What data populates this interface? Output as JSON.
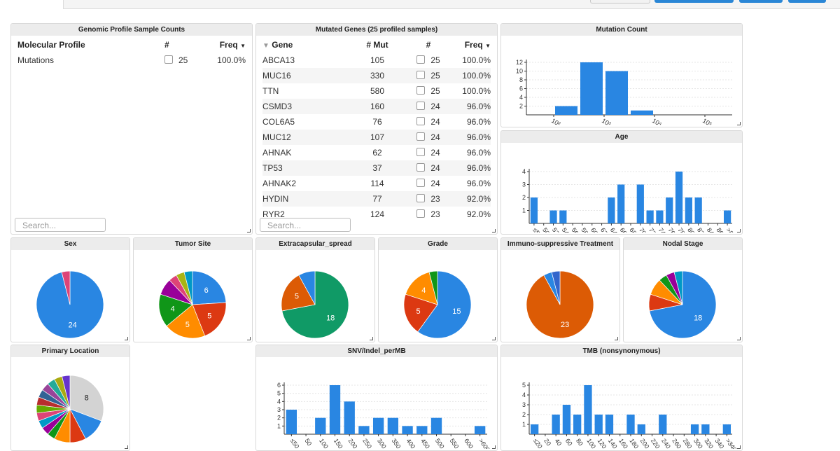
{
  "colors": {
    "blue": "#2986e2",
    "orange": "#dc5b05",
    "green": "#109618",
    "teal": "#109a66",
    "red": "#dc3912",
    "amber": "#ff8c00",
    "purple": "#990099",
    "pink": "#dd4477",
    "olive": "#a8b414",
    "gray": "#d3d3d3"
  },
  "genomic_profile": {
    "title": "Genomic Profile Sample Counts",
    "col_profile": "Molecular Profile",
    "col_count": "#",
    "col_freq": "Freq",
    "rows": [
      {
        "profile": "Mutations",
        "count": "25",
        "freq": "100.0%"
      }
    ],
    "search_placeholder": "Search..."
  },
  "mutated_genes": {
    "title": "Mutated Genes (25 profiled samples)",
    "col_gene": "Gene",
    "col_mut": "# Mut",
    "col_count": "#",
    "col_freq": "Freq",
    "rows": [
      {
        "gene": "ABCA13",
        "mut": "105",
        "count": "25",
        "freq": "100.0%"
      },
      {
        "gene": "MUC16",
        "mut": "330",
        "count": "25",
        "freq": "100.0%"
      },
      {
        "gene": "TTN",
        "mut": "580",
        "count": "25",
        "freq": "100.0%"
      },
      {
        "gene": "CSMD3",
        "mut": "160",
        "count": "24",
        "freq": "96.0%"
      },
      {
        "gene": "COL6A5",
        "mut": "76",
        "count": "24",
        "freq": "96.0%"
      },
      {
        "gene": "MUC12",
        "mut": "107",
        "count": "24",
        "freq": "96.0%"
      },
      {
        "gene": "AHNAK",
        "mut": "62",
        "count": "24",
        "freq": "96.0%"
      },
      {
        "gene": "TP53",
        "mut": "37",
        "count": "24",
        "freq": "96.0%"
      },
      {
        "gene": "AHNAK2",
        "mut": "114",
        "count": "24",
        "freq": "96.0%"
      },
      {
        "gene": "HYDIN",
        "mut": "77",
        "count": "23",
        "freq": "92.0%"
      },
      {
        "gene": "RYR2",
        "mut": "124",
        "count": "23",
        "freq": "92.0%"
      }
    ],
    "search_placeholder": "Search..."
  },
  "chart_data": [
    {
      "id": "mutation_count",
      "type": "bar",
      "title": "Mutation Count",
      "xscale": "log",
      "categories": [
        "10²",
        "10³",
        "10⁴",
        "10⁵"
      ],
      "bars": [
        {
          "bin": "<10²",
          "value": 0
        },
        {
          "bin": "10²–10^2.5",
          "value": 2
        },
        {
          "bin": "10^2.5–10³",
          "value": 12
        },
        {
          "bin": "10³–10^3.5",
          "value": 10
        },
        {
          "bin": "10^3.5–10⁴",
          "value": 1
        }
      ],
      "yticks": [
        "2",
        "4",
        "6",
        "8",
        "10",
        "12"
      ],
      "ylim": [
        0,
        12
      ]
    },
    {
      "id": "age",
      "type": "bar",
      "title": "Age",
      "categories": [
        "≤50",
        "50",
        "52",
        "54",
        "56",
        "58",
        "60",
        "62",
        "64",
        "66",
        "68",
        "70",
        "72",
        "74",
        "76",
        "78",
        "80",
        "82",
        "84",
        "86",
        ">86"
      ],
      "values": [
        2,
        0,
        1,
        1,
        0,
        0,
        0,
        0,
        2,
        3,
        0,
        3,
        1,
        1,
        2,
        4,
        2,
        2,
        0,
        0,
        1
      ],
      "yticks": [
        "1",
        "2",
        "3",
        "4"
      ],
      "ylim": [
        0,
        4
      ]
    },
    {
      "id": "sex",
      "type": "pie",
      "title": "Sex",
      "slices": [
        {
          "label": "24",
          "value": 24,
          "color": "#2986e2"
        },
        {
          "label": "",
          "value": 1,
          "color": "#dd4477"
        }
      ]
    },
    {
      "id": "tumor_site",
      "type": "pie",
      "title": "Tumor Site",
      "slices": [
        {
          "label": "6",
          "value": 6,
          "color": "#2986e2"
        },
        {
          "label": "5",
          "value": 5,
          "color": "#dc3912"
        },
        {
          "label": "5",
          "value": 5,
          "color": "#ff8c00"
        },
        {
          "label": "4",
          "value": 4,
          "color": "#109618"
        },
        {
          "label": "",
          "value": 2,
          "color": "#990099"
        },
        {
          "label": "",
          "value": 1,
          "color": "#dd4477"
        },
        {
          "label": "",
          "value": 1,
          "color": "#a8b414"
        },
        {
          "label": "",
          "value": 1,
          "color": "#0099c6"
        }
      ]
    },
    {
      "id": "extracapsular_spread",
      "type": "pie",
      "title": "Extracapsular_spread",
      "slices": [
        {
          "label": "18",
          "value": 18,
          "color": "#109a66"
        },
        {
          "label": "5",
          "value": 5,
          "color": "#dc5b05"
        },
        {
          "label": "",
          "value": 2,
          "color": "#2986e2"
        }
      ]
    },
    {
      "id": "grade",
      "type": "pie",
      "title": "Grade",
      "slices": [
        {
          "label": "15",
          "value": 15,
          "color": "#2986e2"
        },
        {
          "label": "5",
          "value": 5,
          "color": "#dc3912"
        },
        {
          "label": "4",
          "value": 4,
          "color": "#ff8c00"
        },
        {
          "label": "",
          "value": 1,
          "color": "#109618"
        }
      ]
    },
    {
      "id": "immuno_treatment",
      "type": "pie",
      "title": "Immuno-suppressive Treatment",
      "slices": [
        {
          "label": "23",
          "value": 23,
          "color": "#dc5b05"
        },
        {
          "label": "",
          "value": 1,
          "color": "#2986e2"
        },
        {
          "label": "",
          "value": 1,
          "color": "#3366cc"
        }
      ]
    },
    {
      "id": "nodal_stage",
      "type": "pie",
      "title": "Nodal Stage",
      "slices": [
        {
          "label": "18",
          "value": 18,
          "color": "#2986e2"
        },
        {
          "label": "",
          "value": 2,
          "color": "#dc3912"
        },
        {
          "label": "",
          "value": 2,
          "color": "#ff8c00"
        },
        {
          "label": "",
          "value": 1,
          "color": "#109618"
        },
        {
          "label": "",
          "value": 1,
          "color": "#990099"
        },
        {
          "label": "",
          "value": 1,
          "color": "#0099c6"
        }
      ]
    },
    {
      "id": "primary_location",
      "type": "pie",
      "title": "Primary Location",
      "slices": [
        {
          "label": "8",
          "value": 8,
          "color": "#d3d3d3"
        },
        {
          "label": "",
          "value": 3,
          "color": "#2986e2"
        },
        {
          "label": "",
          "value": 2,
          "color": "#dc3912"
        },
        {
          "label": "",
          "value": 2,
          "color": "#ff8c00"
        },
        {
          "label": "",
          "value": 1,
          "color": "#109618"
        },
        {
          "label": "",
          "value": 1,
          "color": "#990099"
        },
        {
          "label": "",
          "value": 1,
          "color": "#0099c6"
        },
        {
          "label": "",
          "value": 1,
          "color": "#dd4477"
        },
        {
          "label": "",
          "value": 1,
          "color": "#66aa00"
        },
        {
          "label": "",
          "value": 1,
          "color": "#b82e2e"
        },
        {
          "label": "",
          "value": 1,
          "color": "#316395"
        },
        {
          "label": "",
          "value": 1,
          "color": "#994499"
        },
        {
          "label": "",
          "value": 1,
          "color": "#22aa99"
        },
        {
          "label": "",
          "value": 1,
          "color": "#aaaa11"
        },
        {
          "label": "",
          "value": 1,
          "color": "#6633cc"
        }
      ]
    },
    {
      "id": "snv_indel",
      "type": "bar",
      "title": "SNV/Indel_perMB",
      "categories": [
        "≤50",
        "50",
        "100",
        "150",
        "200",
        "250",
        "300",
        "350",
        "400",
        "450",
        "500",
        "550",
        "600",
        ">600"
      ],
      "values": [
        3,
        0,
        2,
        6,
        4,
        1,
        2,
        2,
        1,
        1,
        2,
        0,
        0,
        1
      ],
      "yticks": [
        "1",
        "2",
        "3",
        "4",
        "5",
        "6"
      ],
      "ylim": [
        0,
        6
      ]
    },
    {
      "id": "tmb",
      "type": "bar",
      "title": "TMB (nonsynonymous)",
      "categories": [
        "≤20",
        "20",
        "40",
        "60",
        "80",
        "100",
        "120",
        "140",
        "160",
        "180",
        "200",
        "220",
        "240",
        "260",
        "280",
        "300",
        "320",
        "340",
        ">340"
      ],
      "values": [
        1,
        0,
        2,
        3,
        2,
        5,
        2,
        2,
        0,
        2,
        1,
        0,
        2,
        0,
        0,
        1,
        1,
        0,
        1
      ],
      "yticks": [
        "1",
        "2",
        "3",
        "4",
        "5"
      ],
      "ylim": [
        0,
        5
      ]
    }
  ]
}
